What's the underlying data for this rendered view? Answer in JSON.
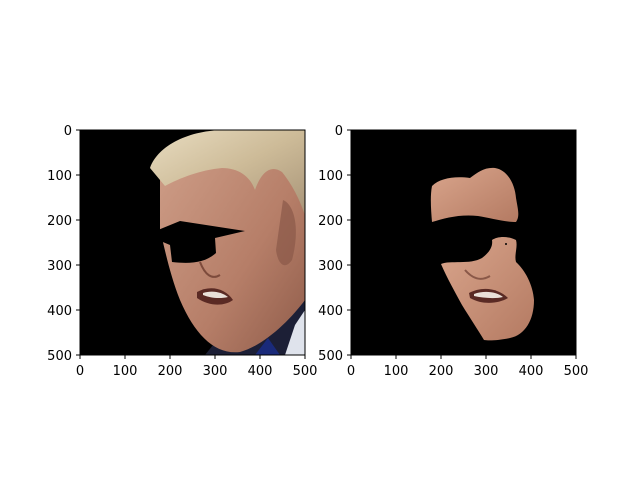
{
  "figure": {
    "panels": [
      {
        "id": "left",
        "image_description": "masked face photo",
        "x_ticks": [
          "0",
          "100",
          "200",
          "300",
          "400",
          "500"
        ],
        "y_ticks": [
          "0",
          "100",
          "200",
          "300",
          "400",
          "500"
        ]
      },
      {
        "id": "right",
        "image_description": "segmented skin regions",
        "x_ticks": [
          "0",
          "100",
          "200",
          "300",
          "400",
          "500"
        ],
        "y_ticks": [
          "0",
          "100",
          "200",
          "300",
          "400",
          "500"
        ]
      }
    ]
  }
}
